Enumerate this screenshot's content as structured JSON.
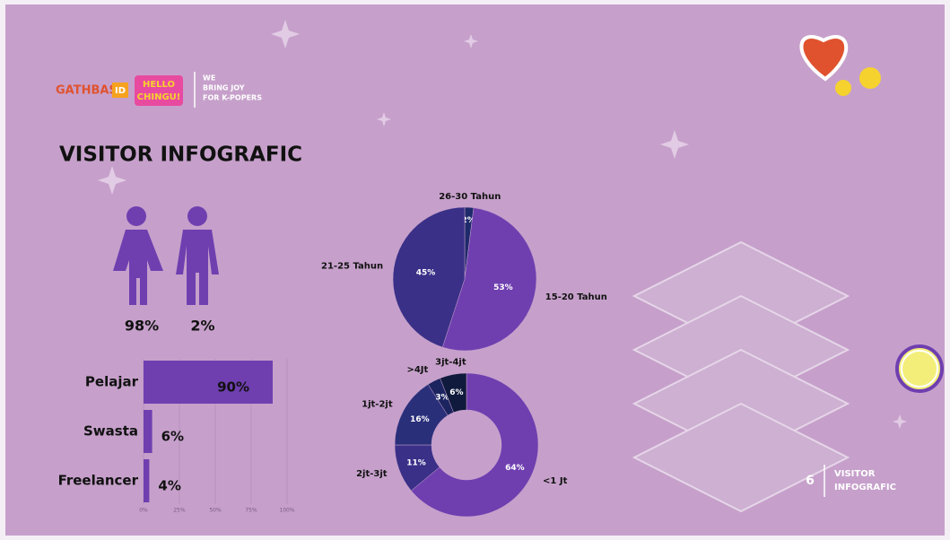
{
  "header": {
    "brand": "GATHBASE",
    "brand_badge": "ID",
    "partner_line1": "HELLO",
    "partner_line2": "CHINGU!",
    "tagline": [
      "WE",
      "BRING JOY",
      "FOR K-POPERS"
    ]
  },
  "title": "VISITOR INFOGRAFIC",
  "footer": {
    "page": "6",
    "label_line1": "VISITOR",
    "label_line2": "INFOGRAFIC"
  },
  "chart_data": [
    {
      "type": "pictogram",
      "values": [
        98,
        2
      ],
      "value_labels": [
        "98%",
        "2%"
      ],
      "color": "#6f3fb0"
    },
    {
      "type": "bar",
      "orientation": "horizontal",
      "categories": [
        "Pelajar",
        "Swasta",
        "Freelancer"
      ],
      "values": [
        90,
        6,
        4
      ],
      "value_labels": [
        "90%",
        "6%",
        "4%"
      ],
      "color": "#6f3fb0",
      "xlim": [
        0,
        100
      ],
      "xticks": [
        {
          "value": 0,
          "label": "0%"
        },
        {
          "value": 25,
          "label": "25%"
        },
        {
          "value": 50,
          "label": "50%"
        },
        {
          "value": 75,
          "label": "75%"
        },
        {
          "value": 100,
          "label": "100%"
        }
      ],
      "grid": true
    },
    {
      "type": "pie",
      "categories": [
        "26-30 Tahun",
        "15-20 Tahun",
        "21-25 Tahun"
      ],
      "values": [
        2,
        53,
        45
      ],
      "value_labels": [
        "2%",
        "53%",
        "45%"
      ],
      "colors": [
        "#1f2a6b",
        "#6f3fb0",
        "#3a3088"
      ]
    },
    {
      "type": "donut",
      "categories": [
        "<1 Jt",
        "2jt-3jt",
        "1jt-2jt",
        ">4Jt",
        "3jt-4jt"
      ],
      "values": [
        64,
        11,
        16,
        3,
        6
      ],
      "value_labels": [
        "64%",
        "11%",
        "16%",
        "3%",
        "6%"
      ],
      "colors": [
        "#6f3fb0",
        "#3a3088",
        "#2a2f7a",
        "#1c2460",
        "#0f1a3c"
      ]
    }
  ]
}
